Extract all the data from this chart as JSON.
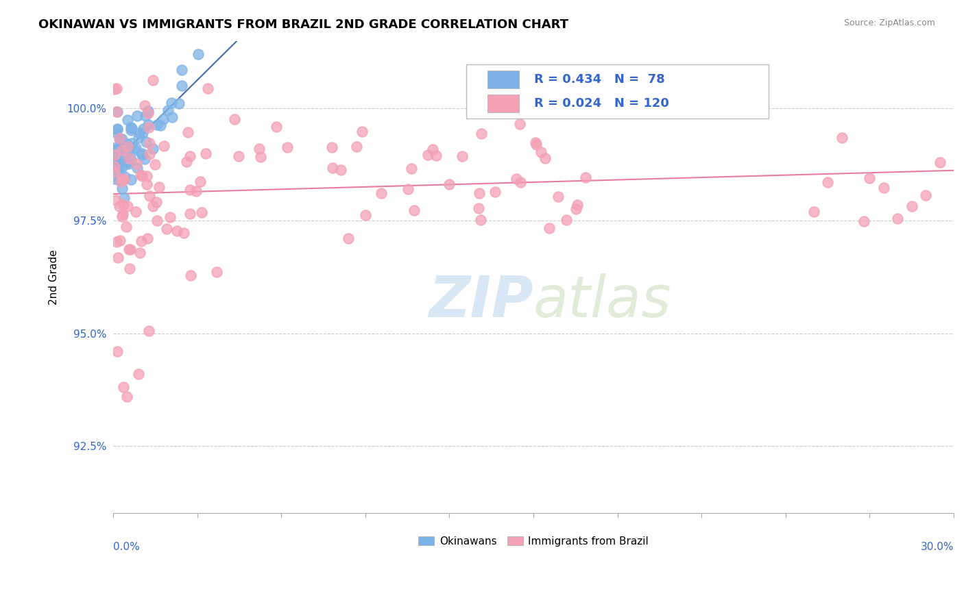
{
  "title": "OKINAWAN VS IMMIGRANTS FROM BRAZIL 2ND GRADE CORRELATION CHART",
  "source": "Source: ZipAtlas.com",
  "ylabel": "2nd Grade",
  "yaxis_labels": [
    "92.5%",
    "95.0%",
    "97.5%",
    "100.0%"
  ],
  "yaxis_values": [
    92.5,
    95.0,
    97.5,
    100.0
  ],
  "xlim": [
    0.0,
    30.0
  ],
  "ylim": [
    91.0,
    101.5
  ],
  "legend_r1": "R = 0.434",
  "legend_n1": "N =  78",
  "legend_r2": "R = 0.024",
  "legend_n2": "N = 120",
  "okinawan_color": "#7EB3E8",
  "brazil_color": "#F4A0B5",
  "trendline_okinawan_color": "#4169AA",
  "trendline_brazil_color": "#E87A9A"
}
